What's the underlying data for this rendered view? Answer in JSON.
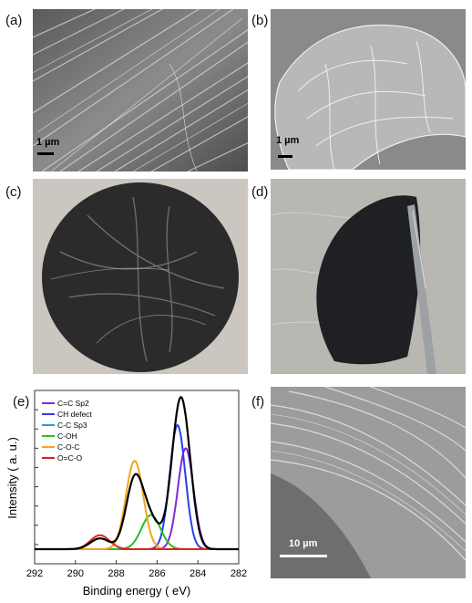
{
  "panels": {
    "a": {
      "label": "(a)",
      "scale_bar": "1 µm"
    },
    "b": {
      "label": "(b)",
      "scale_bar": "1 µm"
    },
    "c": {
      "label": "(c)"
    },
    "d": {
      "label": "(d)"
    },
    "e": {
      "label": "(e)"
    },
    "f": {
      "label": "(f)",
      "scale_bar": "10 µm"
    }
  },
  "chart_data": {
    "type": "line",
    "xlabel": "Binding energy ( eV)",
    "ylabel": "Intensity ( a. u.)",
    "x_ticks": [
      292,
      290,
      288,
      286,
      284,
      282
    ],
    "xlim": [
      292,
      282
    ],
    "x_reversed": true,
    "y_tick_labels_shown": false,
    "legend_position": "top-left",
    "series": [
      {
        "name": "C=C Sp2",
        "color": "#7f2bd6",
        "center": 284.6,
        "fwhm": 0.9,
        "height": 0.65
      },
      {
        "name": "CH defect",
        "color": "#2c3fe6",
        "center": 285.0,
        "fwhm": 0.9,
        "height": 0.8
      },
      {
        "name": "C-C Sp3",
        "color": "#1aa0e6",
        "center": 285.6,
        "fwhm": 1.0,
        "height": 0.0
      },
      {
        "name": "C-OH",
        "color": "#22c02a",
        "center": 286.3,
        "fwhm": 1.1,
        "height": 0.22
      },
      {
        "name": "C-O-C",
        "color": "#f2a51a",
        "center": 287.1,
        "fwhm": 1.0,
        "height": 0.57
      },
      {
        "name": "O=C-O",
        "color": "#e02121",
        "center": 288.8,
        "fwhm": 1.1,
        "height": 0.09
      }
    ],
    "envelope": {
      "color": "#000000",
      "baseline": 0.0
    }
  }
}
